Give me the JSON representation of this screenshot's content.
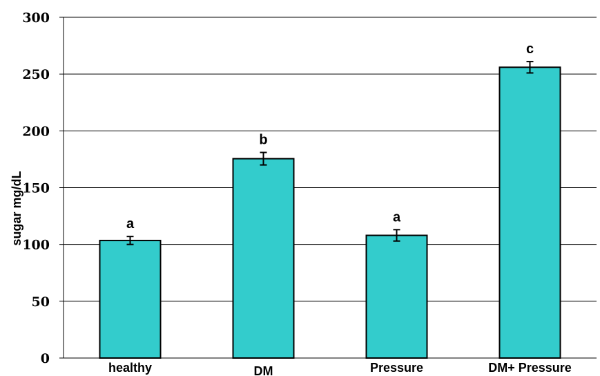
{
  "chart_data": {
    "type": "bar",
    "categories": [
      "healthy",
      "DM",
      "Pressure",
      "DM+ Pressure"
    ],
    "values": [
      103.5,
      175.5,
      108,
      256
    ],
    "errors": [
      3.5,
      5.5,
      5,
      5
    ],
    "significance_labels": [
      "a",
      "b",
      "a",
      "c"
    ],
    "title": "",
    "xlabel": "",
    "ylabel": "sugar  mg/dL",
    "ylim": [
      0,
      300
    ],
    "yticks": [
      "0",
      "50",
      "100",
      "150",
      "200",
      "250",
      "300"
    ],
    "grid": true,
    "legend": "none",
    "bar_color": "#33CCCC"
  }
}
